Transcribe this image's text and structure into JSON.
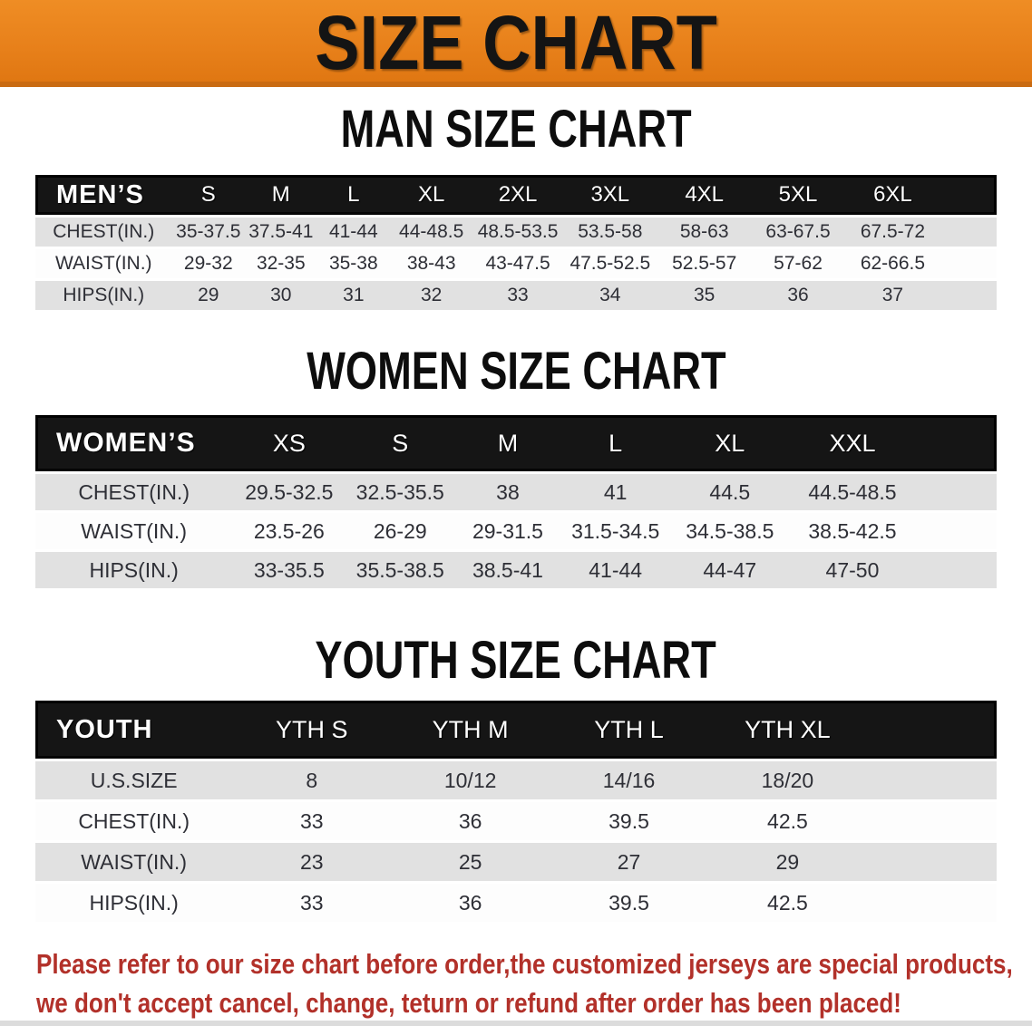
{
  "banner": {
    "title": "SIZE CHART"
  },
  "sections": [
    {
      "id": "men",
      "heading": "MAN SIZE CHART",
      "table": {
        "corner_label": "MEN’S",
        "columns": [
          "S",
          "M",
          "L",
          "XL",
          "2XL",
          "3XL",
          "4XL",
          "5XL",
          "6XL"
        ],
        "rows": [
          {
            "label": "CHEST(IN.)",
            "values": [
              "35-37.5",
              "37.5-41",
              "41-44",
              "44-48.5",
              "48.5-53.5",
              "53.5-58",
              "58-63",
              "63-67.5",
              "67.5-72"
            ]
          },
          {
            "label": "WAIST(IN.)",
            "values": [
              "29-32",
              "32-35",
              "35-38",
              "38-43",
              "43-47.5",
              "47.5-52.5",
              "52.5-57",
              "57-62",
              "62-66.5"
            ]
          },
          {
            "label": "HIPS(IN.)",
            "values": [
              "29",
              "30",
              "31",
              "32",
              "33",
              "34",
              "35",
              "36",
              "37"
            ]
          }
        ]
      }
    },
    {
      "id": "women",
      "heading": "WOMEN SIZE CHART",
      "table": {
        "corner_label": "WOMEN’S",
        "columns": [
          "XS",
          "S",
          "M",
          "L",
          "XL",
          "XXL"
        ],
        "rows": [
          {
            "label": "CHEST(IN.)",
            "values": [
              "29.5-32.5",
              "32.5-35.5",
              "38",
              "41",
              "44.5",
              "44.5-48.5"
            ]
          },
          {
            "label": "WAIST(IN.)",
            "values": [
              "23.5-26",
              "26-29",
              "29-31.5",
              "31.5-34.5",
              "34.5-38.5",
              "38.5-42.5"
            ]
          },
          {
            "label": "HIPS(IN.)",
            "values": [
              "33-35.5",
              "35.5-38.5",
              "38.5-41",
              "41-44",
              "44-47",
              "47-50"
            ]
          }
        ]
      }
    },
    {
      "id": "youth",
      "heading": "YOUTH SIZE CHART",
      "table": {
        "corner_label": "YOUTH",
        "columns": [
          "YTH S",
          "YTH M",
          "YTH L",
          "YTH XL"
        ],
        "rows": [
          {
            "label": "U.S.SIZE",
            "values": [
              "8",
              "10/12",
              "14/16",
              "18/20"
            ]
          },
          {
            "label": "CHEST(IN.)",
            "values": [
              "33",
              "36",
              "39.5",
              "42.5"
            ]
          },
          {
            "label": "WAIST(IN.)",
            "values": [
              "23",
              "25",
              "27",
              "29"
            ]
          },
          {
            "label": "HIPS(IN.)",
            "values": [
              "33",
              "36",
              "39.5",
              "42.5"
            ]
          }
        ]
      }
    }
  ],
  "disclaimer": {
    "line1": "Please refer to our size chart before order,the customized jerseys are special products,",
    "line2": "we don't accept cancel, change, teturn or refund after order has been placed!"
  },
  "colors": {
    "banner_orange": "#e8811b",
    "banner_edge": "#c96b12",
    "header_black": "#151515",
    "row_stripe_gray": "#e1e1e1",
    "text_dark": "#2e2f36",
    "disclaimer_red": "#b2312a"
  }
}
